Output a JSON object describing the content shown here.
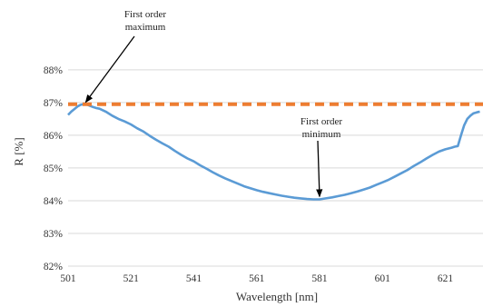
{
  "chart_data": {
    "type": "line",
    "xlabel": "Wavelength [nm]",
    "ylabel": "R [%]",
    "xlim": [
      501,
      633
    ],
    "ylim": [
      82,
      88.8
    ],
    "x_ticks": [
      "501",
      "521",
      "541",
      "561",
      "581",
      "601",
      "621"
    ],
    "y_ticks": [
      "82%",
      "83%",
      "84%",
      "85%",
      "86%",
      "87%",
      "88%"
    ],
    "grid": "horizontal",
    "legend": "none",
    "series": [
      {
        "style": "solid",
        "color": "#5b9bd5",
        "x": [
          501,
          502,
          503,
          504,
          505,
          506,
          507,
          508,
          509,
          510,
          511,
          513,
          515,
          517,
          519,
          521,
          523,
          525,
          527,
          529,
          531,
          533,
          535,
          537,
          539,
          541,
          543,
          545,
          547,
          549,
          551,
          553,
          555,
          557,
          559,
          561,
          563,
          565,
          567,
          569,
          571,
          573,
          575,
          577,
          579,
          581,
          583,
          585,
          587,
          589,
          591,
          593,
          595,
          597,
          599,
          601,
          603,
          605,
          607,
          609,
          611,
          613,
          615,
          617,
          619,
          621,
          623,
          624,
          625,
          626,
          627,
          628,
          629,
          630,
          631,
          632
        ],
        "y": [
          86.62,
          86.72,
          86.8,
          86.88,
          86.93,
          86.95,
          86.94,
          86.9,
          86.86,
          86.83,
          86.81,
          86.72,
          86.6,
          86.5,
          86.42,
          86.33,
          86.21,
          86.11,
          85.98,
          85.86,
          85.75,
          85.65,
          85.52,
          85.4,
          85.29,
          85.2,
          85.08,
          84.98,
          84.87,
          84.77,
          84.68,
          84.6,
          84.52,
          84.44,
          84.38,
          84.32,
          84.27,
          84.23,
          84.19,
          84.15,
          84.12,
          84.09,
          84.07,
          84.05,
          84.04,
          84.04,
          84.07,
          84.1,
          84.14,
          84.18,
          84.23,
          84.28,
          84.34,
          84.4,
          84.48,
          84.56,
          84.64,
          84.74,
          84.84,
          84.94,
          85.06,
          85.17,
          85.29,
          85.4,
          85.5,
          85.57,
          85.62,
          85.65,
          85.67,
          86.0,
          86.3,
          86.5,
          86.6,
          86.67,
          86.7,
          86.72
        ]
      },
      {
        "style": "dashed",
        "color": "#ed7d31",
        "x": [
          501,
          633
        ],
        "y": [
          86.95,
          86.95
        ]
      }
    ],
    "annotations": [
      {
        "text": [
          "First order",
          "maximum"
        ],
        "x": 506,
        "y": 86.95
      },
      {
        "text": [
          "First order",
          "minimum"
        ],
        "x": 581,
        "y": 84.04
      }
    ]
  }
}
